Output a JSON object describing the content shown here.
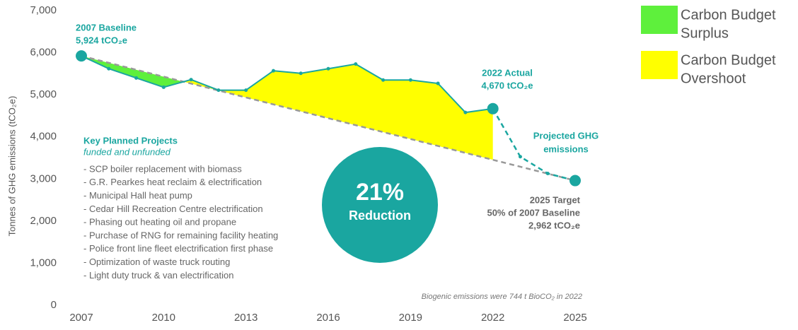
{
  "chart_data": {
    "type": "line",
    "ylabel": "Tonnes of GHG emissions (tCO₂e)",
    "xlim": [
      2007,
      2025
    ],
    "xticks": [
      2007,
      2010,
      2013,
      2016,
      2019,
      2022,
      2025
    ],
    "ylim": [
      0,
      7000
    ],
    "yticks": [
      0,
      {
        "value": 1000,
        "label": "1,000"
      },
      {
        "value": 2000,
        "label": "2,000"
      },
      {
        "value": 3000,
        "label": "3,000"
      },
      {
        "value": 4000,
        "label": "4,000"
      },
      {
        "value": 5000,
        "label": "5,000"
      },
      {
        "value": 6000,
        "label": "6,000"
      },
      {
        "value": 7000,
        "label": "7,000"
      }
    ],
    "series": [
      {
        "color": "#1aa6a0",
        "style": "solid",
        "x": [
          2007,
          2008,
          2009,
          2010,
          2011,
          2012,
          2013,
          2014,
          2015,
          2016,
          2017,
          2018,
          2019,
          2020,
          2021,
          2022
        ],
        "values": [
          5924,
          5620,
          5400,
          5180,
          5360,
          5110,
          5110,
          5570,
          5510,
          5620,
          5730,
          5350,
          5350,
          5270,
          4580,
          4670
        ]
      },
      {
        "color": "#1aa6a0",
        "style": "dashed",
        "x": [
          2022,
          2023,
          2024,
          2025
        ],
        "values": [
          4670,
          3530,
          3130,
          2962
        ]
      },
      {
        "color": "#999999",
        "style": "dashed",
        "x": [
          2007,
          2025
        ],
        "values": [
          5924,
          2962
        ]
      }
    ],
    "legend": [
      {
        "label": [
          "Carbon Budget",
          "Surplus"
        ],
        "color": "#5ef03c"
      },
      {
        "label": [
          "Carbon Budget",
          "Overshoot"
        ],
        "color": "#ffff00"
      }
    ],
    "annotations": {
      "baseline": [
        "2007 Baseline",
        "5,924 tCO₂e"
      ],
      "actual": [
        "2022 Actual",
        "4,670 tCO₂e"
      ],
      "projected": [
        "Projected GHG",
        "emissions"
      ],
      "target": [
        "2025 Target",
        "50% of 2007 Baseline",
        "2,962 tCO₂e"
      ],
      "projects_title": "Key Planned Projects",
      "projects_subtitle": "funded and unfunded",
      "projects": [
        "- SCP boiler replacement with biomass",
        "- G.R. Pearkes heat reclaim & electrification",
        "- Municipal Hall heat pump",
        "- Cedar Hill Recreation Centre electrification",
        "- Phasing out heating oil and propane",
        "- Purchase of RNG for remaining facility heating",
        "- Police front line fleet electrification first phase",
        "- Optimization of waste truck routing",
        "- Light duty truck & van electrification"
      ],
      "reduction": [
        "21%",
        "Reduction"
      ],
      "note": "Biogenic emissions were 744 t BioCO₂ in 2022"
    }
  }
}
